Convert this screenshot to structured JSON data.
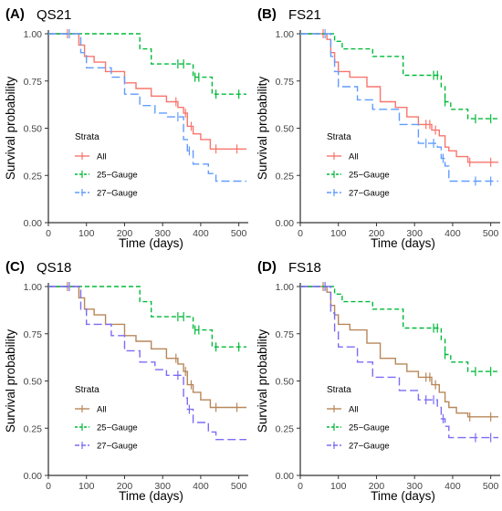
{
  "chart_data": [
    {
      "type": "line",
      "panel_label": "(A)",
      "title": "QS21",
      "xlabel": "Time (days)",
      "ylabel": "Survival probability",
      "xlim": [
        0,
        520
      ],
      "ylim": [
        0,
        1
      ],
      "xticks": [
        "0",
        "100",
        "200",
        "300",
        "400",
        "500"
      ],
      "yticks": [
        "0.00",
        "0.25",
        "0.50",
        "0.75",
        "1.00"
      ],
      "legend_title": "Strata",
      "legend_placement": "lower-left",
      "grid": false,
      "series": [
        {
          "name": "All",
          "color": "#f8766d",
          "dash": "solid",
          "x": [
            0,
            80,
            95,
            120,
            150,
            200,
            230,
            270,
            310,
            340,
            355,
            365,
            380,
            400,
            425,
            520
          ],
          "y": [
            1.0,
            0.94,
            0.88,
            0.85,
            0.8,
            0.74,
            0.71,
            0.67,
            0.64,
            0.61,
            0.58,
            0.51,
            0.47,
            0.44,
            0.39,
            0.39
          ],
          "censor_x": [
            50,
            335,
            360,
            375,
            440,
            495
          ]
        },
        {
          "name": "25−Gauge",
          "color": "#00ba38",
          "dash": "dashed",
          "x": [
            0,
            240,
            270,
            365,
            380,
            430,
            520
          ],
          "y": [
            1.0,
            0.92,
            0.84,
            0.84,
            0.77,
            0.68,
            0.68
          ],
          "censor_x": [
            340,
            355,
            385,
            395,
            440,
            500
          ]
        },
        {
          "name": "27−Gauge",
          "color": "#619cff",
          "dash": "longdash",
          "x": [
            0,
            85,
            100,
            165,
            200,
            240,
            280,
            310,
            355,
            365,
            380,
            420,
            440,
            520
          ],
          "y": [
            1.0,
            0.9,
            0.82,
            0.77,
            0.68,
            0.62,
            0.58,
            0.56,
            0.44,
            0.38,
            0.31,
            0.26,
            0.22,
            0.22
          ],
          "censor_x": [
            55,
            340,
            370
          ]
        }
      ]
    },
    {
      "type": "line",
      "panel_label": "(B)",
      "title": "FS21",
      "xlabel": "Time (days)",
      "ylabel": "Survival probability",
      "xlim": [
        0,
        520
      ],
      "ylim": [
        0,
        1
      ],
      "xticks": [
        "0",
        "100",
        "200",
        "300",
        "400",
        "500"
      ],
      "yticks": [
        "0.00",
        "0.25",
        "0.50",
        "0.75",
        "1.00"
      ],
      "legend_title": "Strata",
      "legend_placement": "lower-left",
      "grid": false,
      "series": [
        {
          "name": "All",
          "color": "#f8766d",
          "dash": "solid",
          "x": [
            0,
            70,
            80,
            90,
            100,
            130,
            175,
            210,
            250,
            280,
            310,
            345,
            365,
            380,
            390,
            410,
            440,
            520
          ],
          "y": [
            1.0,
            0.97,
            0.9,
            0.85,
            0.8,
            0.77,
            0.72,
            0.64,
            0.61,
            0.56,
            0.52,
            0.49,
            0.46,
            0.4,
            0.38,
            0.35,
            0.32,
            0.32
          ],
          "censor_x": [
            60,
            330,
            340,
            355,
            445,
            500
          ]
        },
        {
          "name": "25−Gauge",
          "color": "#00ba38",
          "dash": "dashed",
          "x": [
            0,
            90,
            110,
            190,
            270,
            370,
            380,
            395,
            440,
            520
          ],
          "y": [
            1.0,
            0.96,
            0.92,
            0.88,
            0.78,
            0.72,
            0.64,
            0.6,
            0.55,
            0.55
          ],
          "censor_x": [
            350,
            360,
            380,
            460,
            500
          ]
        },
        {
          "name": "27−Gauge",
          "color": "#619cff",
          "dash": "longdash",
          "x": [
            0,
            80,
            90,
            100,
            150,
            190,
            260,
            310,
            360,
            370,
            380,
            390,
            520
          ],
          "y": [
            1.0,
            0.88,
            0.8,
            0.72,
            0.65,
            0.6,
            0.52,
            0.42,
            0.4,
            0.34,
            0.3,
            0.22,
            0.22
          ],
          "censor_x": [
            65,
            330,
            350,
            375,
            460,
            500
          ]
        }
      ]
    },
    {
      "type": "line",
      "panel_label": "(C)",
      "title": "QS18",
      "xlabel": "Time (days)",
      "ylabel": "Survival probability",
      "xlim": [
        0,
        520
      ],
      "ylim": [
        0,
        1
      ],
      "xticks": [
        "0",
        "100",
        "200",
        "300",
        "400",
        "500"
      ],
      "yticks": [
        "0.00",
        "0.25",
        "0.50",
        "0.75",
        "1.00"
      ],
      "legend_title": "Strata",
      "legend_placement": "lower-left",
      "grid": false,
      "series": [
        {
          "name": "All",
          "color": "#b8875a",
          "dash": "solid",
          "x": [
            0,
            80,
            95,
            120,
            150,
            200,
            230,
            270,
            310,
            340,
            355,
            365,
            380,
            400,
            425,
            520
          ],
          "y": [
            1.0,
            0.94,
            0.88,
            0.85,
            0.8,
            0.74,
            0.71,
            0.67,
            0.62,
            0.59,
            0.55,
            0.48,
            0.44,
            0.4,
            0.36,
            0.36
          ],
          "censor_x": [
            50,
            335,
            360,
            375,
            440,
            495
          ]
        },
        {
          "name": "25−Gauge",
          "color": "#00ba38",
          "dash": "dashed",
          "x": [
            0,
            240,
            270,
            365,
            380,
            430,
            520
          ],
          "y": [
            1.0,
            0.92,
            0.84,
            0.84,
            0.77,
            0.68,
            0.68
          ],
          "censor_x": [
            340,
            355,
            385,
            395,
            440,
            500
          ]
        },
        {
          "name": "27−Gauge",
          "color": "#7b6cf6",
          "dash": "longdash",
          "x": [
            0,
            85,
            100,
            165,
            200,
            240,
            280,
            310,
            355,
            365,
            380,
            420,
            440,
            520
          ],
          "y": [
            1.0,
            0.88,
            0.8,
            0.74,
            0.66,
            0.6,
            0.56,
            0.53,
            0.41,
            0.35,
            0.28,
            0.23,
            0.19,
            0.19
          ],
          "censor_x": [
            55,
            340,
            370
          ]
        }
      ]
    },
    {
      "type": "line",
      "panel_label": "(D)",
      "title": "FS18",
      "xlabel": "Time (days)",
      "ylabel": "Survival probability",
      "xlim": [
        0,
        520
      ],
      "ylim": [
        0,
        1
      ],
      "xticks": [
        "0",
        "100",
        "200",
        "300",
        "400",
        "500"
      ],
      "yticks": [
        "0.00",
        "0.25",
        "0.50",
        "0.75",
        "1.00"
      ],
      "legend_title": "Strata",
      "legend_placement": "lower-left",
      "grid": false,
      "series": [
        {
          "name": "All",
          "color": "#b8875a",
          "dash": "solid",
          "x": [
            0,
            70,
            80,
            90,
            100,
            130,
            175,
            210,
            250,
            280,
            310,
            345,
            365,
            380,
            390,
            410,
            440,
            520
          ],
          "y": [
            1.0,
            0.97,
            0.9,
            0.85,
            0.8,
            0.77,
            0.7,
            0.62,
            0.59,
            0.55,
            0.52,
            0.48,
            0.44,
            0.39,
            0.36,
            0.33,
            0.31,
            0.31
          ],
          "censor_x": [
            60,
            330,
            340,
            355,
            445,
            500
          ]
        },
        {
          "name": "25−Gauge",
          "color": "#00ba38",
          "dash": "dashed",
          "x": [
            0,
            90,
            110,
            190,
            270,
            370,
            380,
            395,
            440,
            520
          ],
          "y": [
            1.0,
            0.96,
            0.92,
            0.88,
            0.78,
            0.72,
            0.64,
            0.6,
            0.55,
            0.55
          ],
          "censor_x": [
            350,
            360,
            380,
            460,
            500
          ]
        },
        {
          "name": "27−Gauge",
          "color": "#7b6cf6",
          "dash": "longdash",
          "x": [
            0,
            80,
            90,
            100,
            150,
            190,
            260,
            310,
            360,
            370,
            380,
            390,
            520
          ],
          "y": [
            1.0,
            0.86,
            0.76,
            0.68,
            0.6,
            0.52,
            0.45,
            0.4,
            0.36,
            0.3,
            0.26,
            0.2,
            0.2
          ],
          "censor_x": [
            65,
            330,
            350,
            375,
            460,
            500
          ]
        }
      ]
    }
  ]
}
